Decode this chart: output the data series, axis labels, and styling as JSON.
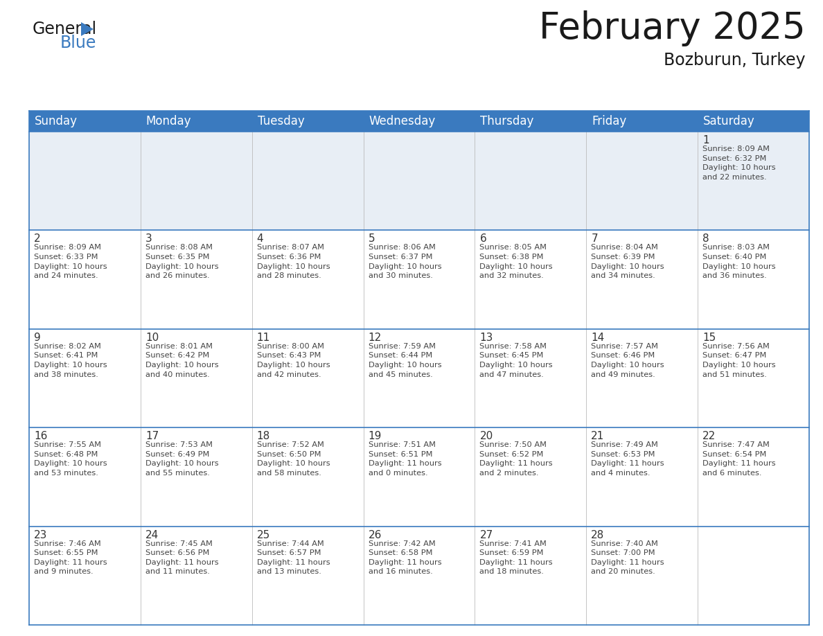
{
  "title": "February 2025",
  "subtitle": "Bozburun, Turkey",
  "header_color": "#3a7abf",
  "header_text_color": "#ffffff",
  "background_color": "#ffffff",
  "first_row_bg": "#e8eef5",
  "border_color": "#3a7abf",
  "cell_line_color": "#3a7abf",
  "vert_line_color": "#bbbbbb",
  "day_names": [
    "Sunday",
    "Monday",
    "Tuesday",
    "Wednesday",
    "Thursday",
    "Friday",
    "Saturday"
  ],
  "title_fontsize": 38,
  "subtitle_fontsize": 17,
  "day_header_fontsize": 12,
  "day_num_fontsize": 11,
  "cell_text_fontsize": 8.2,
  "logo_general_fontsize": 17,
  "logo_blue_fontsize": 17,
  "weeks": [
    [
      {
        "day": null,
        "info": null
      },
      {
        "day": null,
        "info": null
      },
      {
        "day": null,
        "info": null
      },
      {
        "day": null,
        "info": null
      },
      {
        "day": null,
        "info": null
      },
      {
        "day": null,
        "info": null
      },
      {
        "day": 1,
        "info": "Sunrise: 8:09 AM\nSunset: 6:32 PM\nDaylight: 10 hours\nand 22 minutes."
      }
    ],
    [
      {
        "day": 2,
        "info": "Sunrise: 8:09 AM\nSunset: 6:33 PM\nDaylight: 10 hours\nand 24 minutes."
      },
      {
        "day": 3,
        "info": "Sunrise: 8:08 AM\nSunset: 6:35 PM\nDaylight: 10 hours\nand 26 minutes."
      },
      {
        "day": 4,
        "info": "Sunrise: 8:07 AM\nSunset: 6:36 PM\nDaylight: 10 hours\nand 28 minutes."
      },
      {
        "day": 5,
        "info": "Sunrise: 8:06 AM\nSunset: 6:37 PM\nDaylight: 10 hours\nand 30 minutes."
      },
      {
        "day": 6,
        "info": "Sunrise: 8:05 AM\nSunset: 6:38 PM\nDaylight: 10 hours\nand 32 minutes."
      },
      {
        "day": 7,
        "info": "Sunrise: 8:04 AM\nSunset: 6:39 PM\nDaylight: 10 hours\nand 34 minutes."
      },
      {
        "day": 8,
        "info": "Sunrise: 8:03 AM\nSunset: 6:40 PM\nDaylight: 10 hours\nand 36 minutes."
      }
    ],
    [
      {
        "day": 9,
        "info": "Sunrise: 8:02 AM\nSunset: 6:41 PM\nDaylight: 10 hours\nand 38 minutes."
      },
      {
        "day": 10,
        "info": "Sunrise: 8:01 AM\nSunset: 6:42 PM\nDaylight: 10 hours\nand 40 minutes."
      },
      {
        "day": 11,
        "info": "Sunrise: 8:00 AM\nSunset: 6:43 PM\nDaylight: 10 hours\nand 42 minutes."
      },
      {
        "day": 12,
        "info": "Sunrise: 7:59 AM\nSunset: 6:44 PM\nDaylight: 10 hours\nand 45 minutes."
      },
      {
        "day": 13,
        "info": "Sunrise: 7:58 AM\nSunset: 6:45 PM\nDaylight: 10 hours\nand 47 minutes."
      },
      {
        "day": 14,
        "info": "Sunrise: 7:57 AM\nSunset: 6:46 PM\nDaylight: 10 hours\nand 49 minutes."
      },
      {
        "day": 15,
        "info": "Sunrise: 7:56 AM\nSunset: 6:47 PM\nDaylight: 10 hours\nand 51 minutes."
      }
    ],
    [
      {
        "day": 16,
        "info": "Sunrise: 7:55 AM\nSunset: 6:48 PM\nDaylight: 10 hours\nand 53 minutes."
      },
      {
        "day": 17,
        "info": "Sunrise: 7:53 AM\nSunset: 6:49 PM\nDaylight: 10 hours\nand 55 minutes."
      },
      {
        "day": 18,
        "info": "Sunrise: 7:52 AM\nSunset: 6:50 PM\nDaylight: 10 hours\nand 58 minutes."
      },
      {
        "day": 19,
        "info": "Sunrise: 7:51 AM\nSunset: 6:51 PM\nDaylight: 11 hours\nand 0 minutes."
      },
      {
        "day": 20,
        "info": "Sunrise: 7:50 AM\nSunset: 6:52 PM\nDaylight: 11 hours\nand 2 minutes."
      },
      {
        "day": 21,
        "info": "Sunrise: 7:49 AM\nSunset: 6:53 PM\nDaylight: 11 hours\nand 4 minutes."
      },
      {
        "day": 22,
        "info": "Sunrise: 7:47 AM\nSunset: 6:54 PM\nDaylight: 11 hours\nand 6 minutes."
      }
    ],
    [
      {
        "day": 23,
        "info": "Sunrise: 7:46 AM\nSunset: 6:55 PM\nDaylight: 11 hours\nand 9 minutes."
      },
      {
        "day": 24,
        "info": "Sunrise: 7:45 AM\nSunset: 6:56 PM\nDaylight: 11 hours\nand 11 minutes."
      },
      {
        "day": 25,
        "info": "Sunrise: 7:44 AM\nSunset: 6:57 PM\nDaylight: 11 hours\nand 13 minutes."
      },
      {
        "day": 26,
        "info": "Sunrise: 7:42 AM\nSunset: 6:58 PM\nDaylight: 11 hours\nand 16 minutes."
      },
      {
        "day": 27,
        "info": "Sunrise: 7:41 AM\nSunset: 6:59 PM\nDaylight: 11 hours\nand 18 minutes."
      },
      {
        "day": 28,
        "info": "Sunrise: 7:40 AM\nSunset: 7:00 PM\nDaylight: 11 hours\nand 20 minutes."
      },
      {
        "day": null,
        "info": null
      }
    ]
  ]
}
